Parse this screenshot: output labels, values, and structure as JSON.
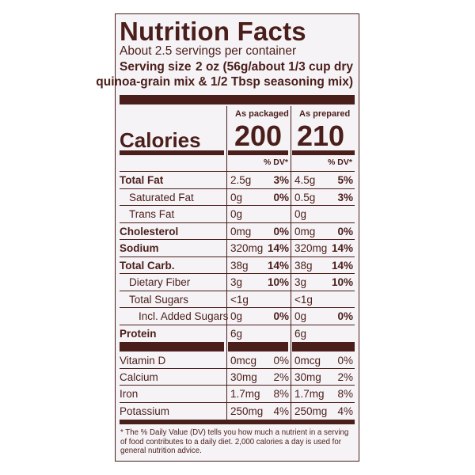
{
  "title": "Nutrition Facts",
  "servings": "About 2.5 servings per container",
  "serving_size_label": "Serving size",
  "serving_size_value_line1": "2 oz (56g/about 1/3 cup dry",
  "serving_size_value_line2": "quinoa-grain mix & 1/2 Tbsp seasoning mix)",
  "col1_header": "As packaged",
  "col2_header": "As prepared",
  "calories_label": "Calories",
  "calories_packaged": "200",
  "calories_prepared": "210",
  "dv_header": "% DV*",
  "nutrients": [
    {
      "name": "Total Fat",
      "a1": "2.5g",
      "d1": "3%",
      "a2": "4.5g",
      "d2": "5%"
    },
    {
      "name": "Saturated Fat",
      "a1": "0g",
      "d1": "0%",
      "a2": "0.5g",
      "d2": "3%"
    },
    {
      "name": "Trans Fat",
      "a1": "0g",
      "d1": "",
      "a2": "0g",
      "d2": ""
    },
    {
      "name": "Cholesterol",
      "a1": "0mg",
      "d1": "0%",
      "a2": "0mg",
      "d2": "0%"
    },
    {
      "name": "Sodium",
      "a1": "320mg",
      "d1": "14%",
      "a2": "320mg",
      "d2": "14%"
    },
    {
      "name": "Total Carb.",
      "a1": "38g",
      "d1": "14%",
      "a2": "38g",
      "d2": "14%"
    },
    {
      "name": "Dietary Fiber",
      "a1": "3g",
      "d1": "10%",
      "a2": "3g",
      "d2": "10%"
    },
    {
      "name": "Total Sugars",
      "a1": "<1g",
      "d1": "",
      "a2": "<1g",
      "d2": ""
    },
    {
      "name": "Incl. Added Sugars",
      "a1": "0g",
      "d1": "0%",
      "a2": "0g",
      "d2": "0%"
    },
    {
      "name": "Protein",
      "a1": "6g",
      "d1": "",
      "a2": "6g",
      "d2": ""
    }
  ],
  "vitamins": [
    {
      "name": "Vitamin D",
      "a1": "0mcg",
      "d1": "0%",
      "a2": "0mcg",
      "d2": "0%"
    },
    {
      "name": "Calcium",
      "a1": "30mg",
      "d1": "2%",
      "a2": "30mg",
      "d2": "2%"
    },
    {
      "name": "Iron",
      "a1": "1.7mg",
      "d1": "8%",
      "a2": "1.7mg",
      "d2": "8%"
    },
    {
      "name": "Potassium",
      "a1": "250mg",
      "d1": "4%",
      "a2": "250mg",
      "d2": "4%"
    }
  ],
  "footnote": "* The % Daily Value (DV) tells you how much a nutrient in a serving of food contributes to a daily diet. 2,000 calories a day is used for general nutrition advice.",
  "colors": {
    "ink": "#4a1e1a",
    "panel": "#f6f3f6"
  }
}
